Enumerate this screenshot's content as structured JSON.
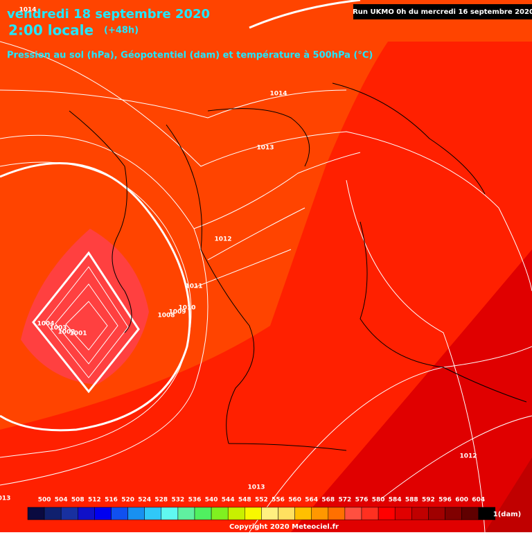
{
  "header": {
    "date": "vendredi 18 septembre 2020",
    "time": "2:00 locale",
    "lead": "(+48h)",
    "subtitle": "Pression au sol (hPa), Géopotentiel (dam) et température à 500hPa (°C)",
    "run": "Run UKMO 0h du mercredi 16 septembre 2020"
  },
  "isobar_labels": [
    "1014",
    "1014",
    "1013",
    "1012",
    "1011",
    "1010",
    "1009",
    "1008",
    "1004",
    "1003",
    "1002",
    "1001",
    "1012",
    "1013",
    "013"
  ],
  "legend": {
    "values": [
      500,
      504,
      508,
      512,
      516,
      520,
      524,
      528,
      532,
      536,
      540,
      544,
      548,
      552,
      556,
      560,
      564,
      568,
      572,
      576,
      580,
      584,
      588,
      592,
      596,
      600,
      604
    ],
    "colors": [
      "#0a0a40",
      "#10206e",
      "#1830a0",
      "#1010c8",
      "#0000f0",
      "#1050f0",
      "#1890f0",
      "#30c8f8",
      "#60f8f0",
      "#60f0a0",
      "#50f060",
      "#80f020",
      "#c8f000",
      "#f8f800",
      "#fff080",
      "#ffe060",
      "#ffc000",
      "#ff9800",
      "#ff7000",
      "#ff5040",
      "#ff3020",
      "#ff0000",
      "#e00000",
      "#c00000",
      "#a00000",
      "#800000",
      "#600000",
      "#000000"
    ],
    "unit": "1(dam)"
  },
  "footer": {
    "copyright": "Copyright 2020 Meteociel.fr"
  }
}
